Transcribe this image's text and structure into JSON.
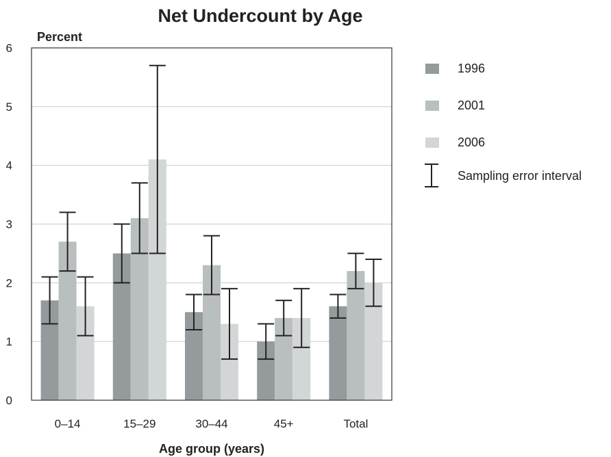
{
  "chart_data": {
    "type": "bar",
    "title": "Net Undercount by Age",
    "xlabel": "Age group (years)",
    "ylabel": "Percent",
    "ylim": [
      0,
      6
    ],
    "yticks": [
      0,
      1,
      2,
      3,
      4,
      5,
      6
    ],
    "grid": true,
    "legend_position": "right",
    "categories": [
      "0–14",
      "15–29",
      "30–44",
      "45+",
      "Total"
    ],
    "series": [
      {
        "name": "1996",
        "color": "#959b9c",
        "values": [
          1.7,
          2.5,
          1.5,
          1.0,
          1.6
        ],
        "error_low": [
          1.3,
          2.0,
          1.2,
          0.7,
          1.4
        ],
        "error_high": [
          2.1,
          3.0,
          1.8,
          1.3,
          1.8
        ]
      },
      {
        "name": "2001",
        "color": "#b9bebe",
        "values": [
          2.7,
          3.1,
          2.3,
          1.4,
          2.2
        ],
        "error_low": [
          2.2,
          2.5,
          1.8,
          1.1,
          1.9
        ],
        "error_high": [
          3.2,
          3.7,
          2.8,
          1.7,
          2.5
        ]
      },
      {
        "name": "2006",
        "color": "#d3d6d6",
        "values": [
          1.6,
          4.1,
          1.3,
          1.4,
          2.0
        ],
        "error_low": [
          1.1,
          2.5,
          0.7,
          0.9,
          1.6
        ],
        "error_high": [
          2.1,
          5.7,
          1.9,
          1.9,
          2.4
        ]
      }
    ],
    "error_legend_label": "Sampling error interval"
  }
}
